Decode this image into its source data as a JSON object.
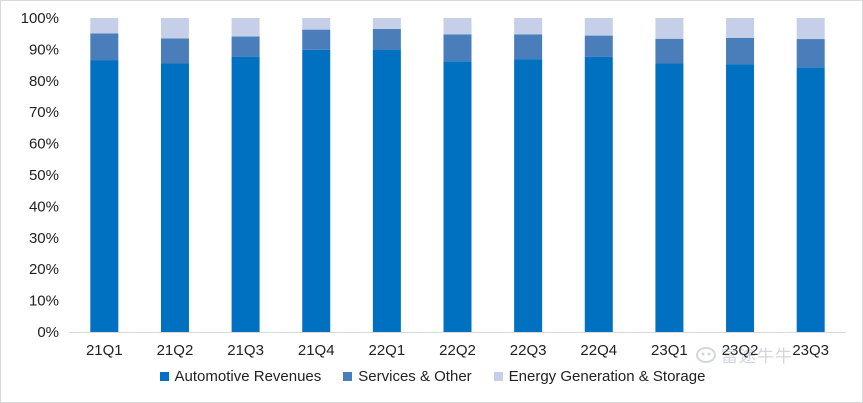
{
  "chart_data": {
    "type": "bar",
    "stacked": true,
    "categories": [
      "21Q1",
      "21Q2",
      "21Q3",
      "21Q4",
      "22Q1",
      "22Q2",
      "22Q3",
      "22Q4",
      "23Q1",
      "23Q2",
      "23Q3"
    ],
    "series": [
      {
        "name": "Automotive Revenues",
        "color": "#0070c0",
        "values": [
          86.6,
          85.5,
          87.7,
          89.9,
          89.8,
          86.2,
          86.9,
          87.6,
          85.5,
          85.3,
          84.2
        ]
      },
      {
        "name": "Services & Other",
        "color": "#4a7ebb",
        "values": [
          8.5,
          8.0,
          6.4,
          6.4,
          6.7,
          8.6,
          7.9,
          6.8,
          7.9,
          8.4,
          9.1
        ]
      },
      {
        "name": "Energy Generation & Storage",
        "color": "#c5cfe8",
        "values": [
          4.9,
          6.5,
          5.9,
          3.7,
          3.5,
          5.2,
          5.2,
          5.6,
          6.6,
          6.3,
          6.7
        ]
      }
    ],
    "ylim": [
      0,
      100
    ],
    "yticks": [
      "0%",
      "10%",
      "20%",
      "30%",
      "40%",
      "50%",
      "60%",
      "70%",
      "80%",
      "90%",
      "100%"
    ],
    "legend_position": "bottom",
    "grid": false
  },
  "watermark": {
    "text": "富途牛牛",
    "icon": "futu-logo-icon"
  }
}
